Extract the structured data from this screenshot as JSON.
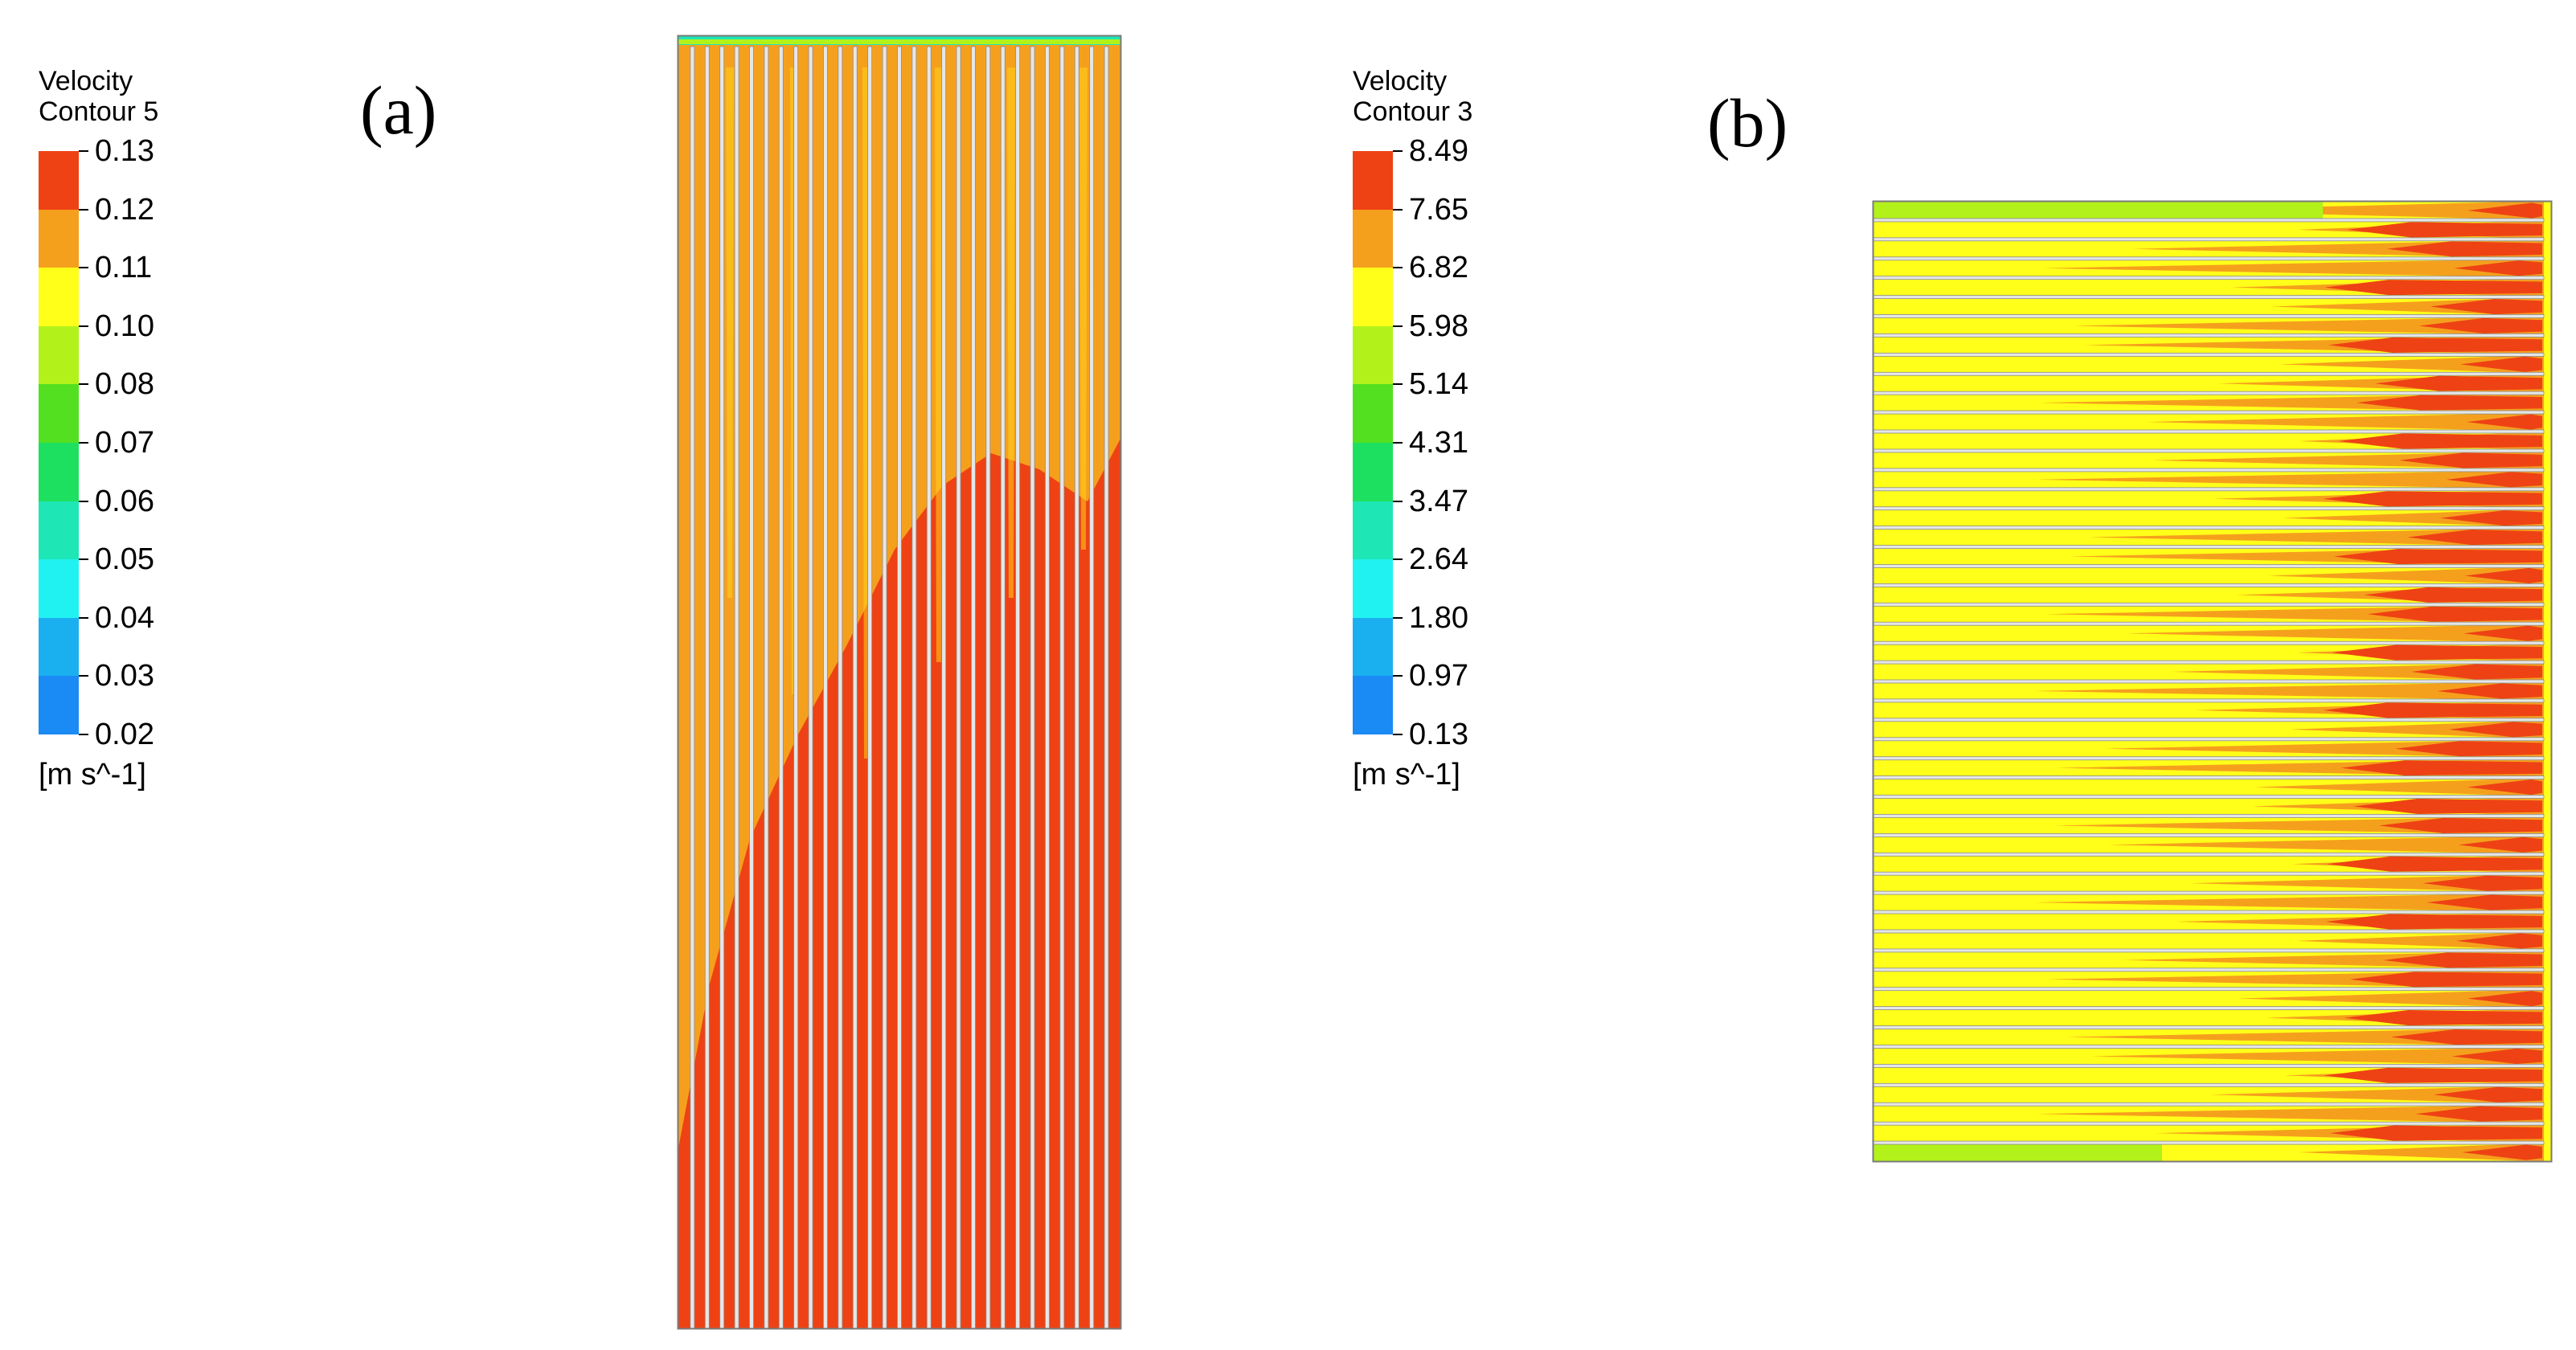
{
  "panels": [
    {
      "label": "(a)",
      "legend": {
        "title_line1": "Velocity",
        "title_line2": "Contour 5",
        "units": "[m s^-1]",
        "levels": [
          "0.13",
          "0.12",
          "0.11",
          "0.10",
          "0.08",
          "0.07",
          "0.06",
          "0.05",
          "0.04",
          "0.03",
          "0.02"
        ]
      }
    },
    {
      "label": "(b)",
      "legend": {
        "title_line1": "Velocity",
        "title_line2": "Contour 3",
        "units": "[m s^-1]",
        "levels": [
          "8.49",
          "7.65",
          "6.82",
          "5.98",
          "5.14",
          "4.31",
          "3.47",
          "2.64",
          "1.80",
          "0.97",
          "0.13"
        ]
      }
    }
  ],
  "colormap": [
    "#ee4214",
    "#f5a01d",
    "#ffff1a",
    "#b2f21a",
    "#52e020",
    "#1ee060",
    "#1ee6b4",
    "#20f2f2",
    "#1ab0f0",
    "#1a8af5",
    "#0f48f0"
  ],
  "channels_a": 30,
  "channels_b": 50
}
